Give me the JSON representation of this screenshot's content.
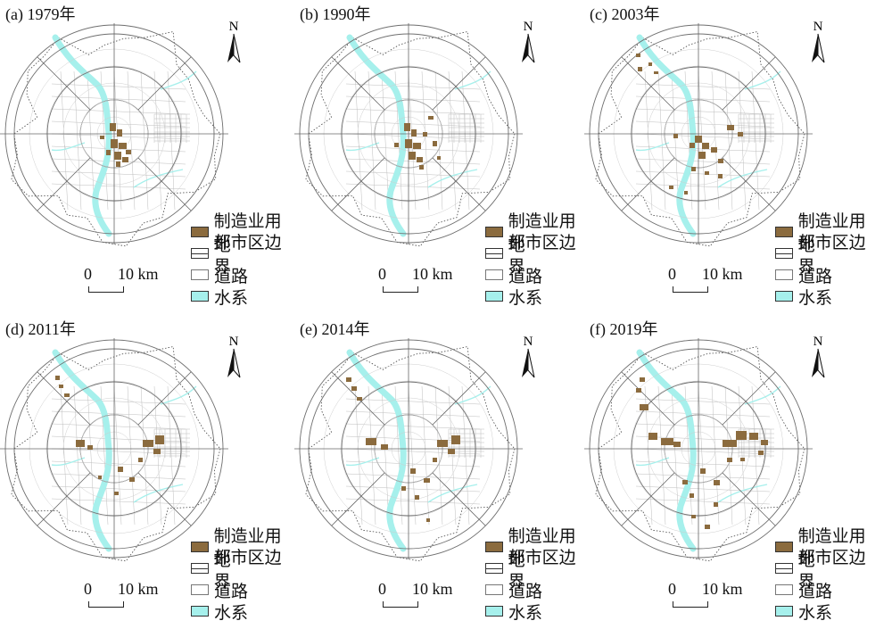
{
  "panels": [
    {
      "title": "(a) 1979年",
      "sites": [
        [
          123,
          138,
          7,
          9
        ],
        [
          131,
          145,
          6,
          8
        ],
        [
          124,
          156,
          8,
          10
        ],
        [
          133,
          160,
          9,
          7
        ],
        [
          128,
          170,
          8,
          9
        ],
        [
          137,
          176,
          7,
          6
        ],
        [
          119,
          168,
          5,
          6
        ],
        [
          141,
          168,
          6,
          5
        ],
        [
          130,
          181,
          5,
          6
        ],
        [
          112,
          152,
          5,
          4
        ]
      ]
    },
    {
      "title": "(b) 1990年",
      "sites": [
        [
          123,
          138,
          7,
          9
        ],
        [
          131,
          145,
          6,
          8
        ],
        [
          124,
          156,
          8,
          10
        ],
        [
          133,
          160,
          9,
          7
        ],
        [
          128,
          170,
          8,
          9
        ],
        [
          137,
          176,
          7,
          6
        ],
        [
          112,
          160,
          5,
          5
        ],
        [
          150,
          130,
          6,
          4
        ],
        [
          155,
          158,
          5,
          6
        ],
        [
          144,
          148,
          5,
          5
        ],
        [
          140,
          185,
          5,
          5
        ],
        [
          160,
          175,
          4,
          4
        ]
      ]
    },
    {
      "title": "(c) 2003年",
      "sites": [
        [
          124,
          152,
          8,
          8
        ],
        [
          132,
          160,
          8,
          7
        ],
        [
          128,
          170,
          8,
          8
        ],
        [
          142,
          165,
          7,
          6
        ],
        [
          118,
          160,
          6,
          6
        ],
        [
          150,
          178,
          6,
          5
        ],
        [
          120,
          187,
          5,
          5
        ],
        [
          135,
          192,
          5,
          4
        ],
        [
          160,
          140,
          8,
          6
        ],
        [
          172,
          148,
          6,
          5
        ],
        [
          100,
          150,
          5,
          5
        ],
        [
          58,
          60,
          5,
          4
        ],
        [
          60,
          75,
          5,
          5
        ],
        [
          72,
          70,
          4,
          4
        ],
        [
          78,
          80,
          5,
          3
        ],
        [
          95,
          208,
          5,
          4
        ],
        [
          112,
          214,
          4,
          4
        ],
        [
          150,
          195,
          5,
          5
        ]
      ]
    },
    {
      "title": "(d) 2011年",
      "sites": [
        [
          85,
          140,
          10,
          8
        ],
        [
          98,
          146,
          6,
          5
        ],
        [
          160,
          140,
          12,
          8
        ],
        [
          174,
          135,
          10,
          10
        ],
        [
          172,
          150,
          8,
          6
        ],
        [
          132,
          170,
          6,
          6
        ],
        [
          145,
          182,
          6,
          5
        ],
        [
          155,
          160,
          5,
          5
        ],
        [
          62,
          68,
          5,
          5
        ],
        [
          66,
          78,
          5,
          4
        ],
        [
          72,
          88,
          6,
          4
        ],
        [
          110,
          180,
          4,
          4
        ],
        [
          128,
          198,
          5,
          4
        ]
      ]
    },
    {
      "title": "(e) 2014年",
      "sites": [
        [
          80,
          138,
          12,
          8
        ],
        [
          97,
          145,
          8,
          6
        ],
        [
          160,
          140,
          12,
          8
        ],
        [
          176,
          135,
          10,
          10
        ],
        [
          172,
          150,
          8,
          6
        ],
        [
          130,
          172,
          6,
          6
        ],
        [
          145,
          183,
          7,
          5
        ],
        [
          155,
          160,
          5,
          5
        ],
        [
          58,
          70,
          6,
          5
        ],
        [
          64,
          80,
          6,
          5
        ],
        [
          70,
          92,
          6,
          4
        ],
        [
          120,
          192,
          5,
          5
        ],
        [
          135,
          202,
          5,
          5
        ],
        [
          148,
          228,
          4,
          4
        ]
      ]
    },
    {
      "title": "(f) 2019年",
      "sites": [
        [
          72,
          132,
          10,
          8
        ],
        [
          86,
          138,
          14,
          8
        ],
        [
          100,
          142,
          8,
          6
        ],
        [
          62,
          100,
          10,
          7
        ],
        [
          58,
          82,
          6,
          5
        ],
        [
          62,
          70,
          6,
          5
        ],
        [
          155,
          140,
          16,
          8
        ],
        [
          170,
          130,
          12,
          10
        ],
        [
          185,
          132,
          10,
          8
        ],
        [
          198,
          140,
          8,
          6
        ],
        [
          195,
          152,
          6,
          5
        ],
        [
          130,
          172,
          6,
          6
        ],
        [
          145,
          185,
          7,
          6
        ],
        [
          160,
          160,
          6,
          5
        ],
        [
          110,
          185,
          6,
          5
        ],
        [
          118,
          200,
          5,
          5
        ],
        [
          145,
          210,
          5,
          5
        ],
        [
          135,
          235,
          6,
          5
        ],
        [
          120,
          224,
          5,
          4
        ],
        [
          175,
          160,
          5,
          4
        ]
      ]
    }
  ],
  "legend": {
    "manufacturing": "制造业用地",
    "boundary": "都市区边界",
    "roads": "道路",
    "water": "水系"
  },
  "scale": {
    "zero": "0",
    "ten": "10 km"
  },
  "north_label": "N",
  "colors": {
    "manufacturing": "#8b6b3e",
    "water": "#a6f0ec",
    "roads": "#bdbdbd",
    "rings": "#6f6f6f"
  }
}
